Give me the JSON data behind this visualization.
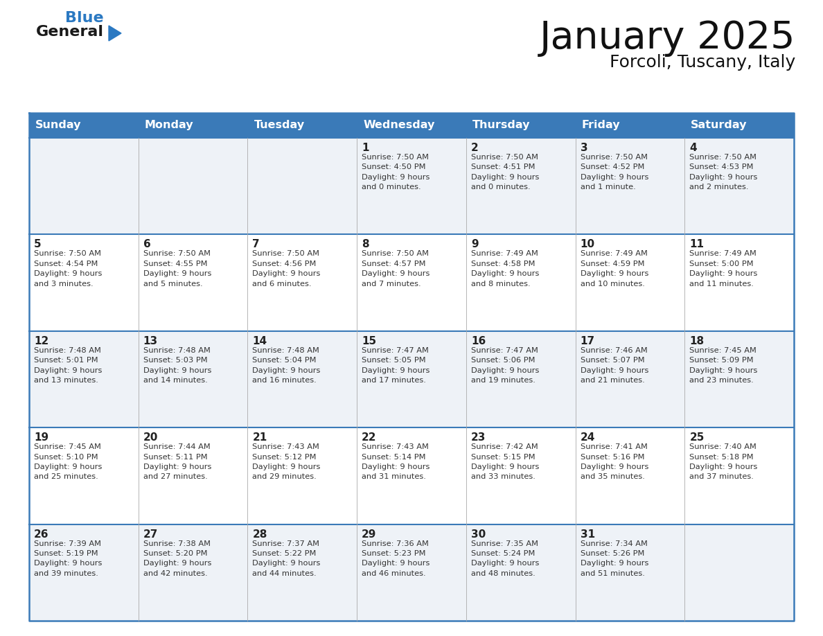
{
  "title": "January 2025",
  "subtitle": "Forcoli, Tuscany, Italy",
  "days_of_week": [
    "Sunday",
    "Monday",
    "Tuesday",
    "Wednesday",
    "Thursday",
    "Friday",
    "Saturday"
  ],
  "header_bg": "#3a7ab8",
  "header_text": "#ffffff",
  "row_bg_light": "#eef2f7",
  "row_bg_white": "#ffffff",
  "border_color": "#3a7ab8",
  "cell_border_color": "#3a7ab8",
  "text_color": "#333333",
  "day_num_color": "#222222",
  "logo_general_color": "#1a1a1a",
  "logo_blue_color": "#2b79c2",
  "logo_triangle_color": "#2b79c2",
  "calendar": [
    [
      {
        "day": "",
        "sunrise": "",
        "sunset": "",
        "daylight": ""
      },
      {
        "day": "",
        "sunrise": "",
        "sunset": "",
        "daylight": ""
      },
      {
        "day": "",
        "sunrise": "",
        "sunset": "",
        "daylight": ""
      },
      {
        "day": "1",
        "sunrise": "7:50 AM",
        "sunset": "4:50 PM",
        "daylight": "9 hours\nand 0 minutes."
      },
      {
        "day": "2",
        "sunrise": "7:50 AM",
        "sunset": "4:51 PM",
        "daylight": "9 hours\nand 0 minutes."
      },
      {
        "day": "3",
        "sunrise": "7:50 AM",
        "sunset": "4:52 PM",
        "daylight": "9 hours\nand 1 minute."
      },
      {
        "day": "4",
        "sunrise": "7:50 AM",
        "sunset": "4:53 PM",
        "daylight": "9 hours\nand 2 minutes."
      }
    ],
    [
      {
        "day": "5",
        "sunrise": "7:50 AM",
        "sunset": "4:54 PM",
        "daylight": "9 hours\nand 3 minutes."
      },
      {
        "day": "6",
        "sunrise": "7:50 AM",
        "sunset": "4:55 PM",
        "daylight": "9 hours\nand 5 minutes."
      },
      {
        "day": "7",
        "sunrise": "7:50 AM",
        "sunset": "4:56 PM",
        "daylight": "9 hours\nand 6 minutes."
      },
      {
        "day": "8",
        "sunrise": "7:50 AM",
        "sunset": "4:57 PM",
        "daylight": "9 hours\nand 7 minutes."
      },
      {
        "day": "9",
        "sunrise": "7:49 AM",
        "sunset": "4:58 PM",
        "daylight": "9 hours\nand 8 minutes."
      },
      {
        "day": "10",
        "sunrise": "7:49 AM",
        "sunset": "4:59 PM",
        "daylight": "9 hours\nand 10 minutes."
      },
      {
        "day": "11",
        "sunrise": "7:49 AM",
        "sunset": "5:00 PM",
        "daylight": "9 hours\nand 11 minutes."
      }
    ],
    [
      {
        "day": "12",
        "sunrise": "7:48 AM",
        "sunset": "5:01 PM",
        "daylight": "9 hours\nand 13 minutes."
      },
      {
        "day": "13",
        "sunrise": "7:48 AM",
        "sunset": "5:03 PM",
        "daylight": "9 hours\nand 14 minutes."
      },
      {
        "day": "14",
        "sunrise": "7:48 AM",
        "sunset": "5:04 PM",
        "daylight": "9 hours\nand 16 minutes."
      },
      {
        "day": "15",
        "sunrise": "7:47 AM",
        "sunset": "5:05 PM",
        "daylight": "9 hours\nand 17 minutes."
      },
      {
        "day": "16",
        "sunrise": "7:47 AM",
        "sunset": "5:06 PM",
        "daylight": "9 hours\nand 19 minutes."
      },
      {
        "day": "17",
        "sunrise": "7:46 AM",
        "sunset": "5:07 PM",
        "daylight": "9 hours\nand 21 minutes."
      },
      {
        "day": "18",
        "sunrise": "7:45 AM",
        "sunset": "5:09 PM",
        "daylight": "9 hours\nand 23 minutes."
      }
    ],
    [
      {
        "day": "19",
        "sunrise": "7:45 AM",
        "sunset": "5:10 PM",
        "daylight": "9 hours\nand 25 minutes."
      },
      {
        "day": "20",
        "sunrise": "7:44 AM",
        "sunset": "5:11 PM",
        "daylight": "9 hours\nand 27 minutes."
      },
      {
        "day": "21",
        "sunrise": "7:43 AM",
        "sunset": "5:12 PM",
        "daylight": "9 hours\nand 29 minutes."
      },
      {
        "day": "22",
        "sunrise": "7:43 AM",
        "sunset": "5:14 PM",
        "daylight": "9 hours\nand 31 minutes."
      },
      {
        "day": "23",
        "sunrise": "7:42 AM",
        "sunset": "5:15 PM",
        "daylight": "9 hours\nand 33 minutes."
      },
      {
        "day": "24",
        "sunrise": "7:41 AM",
        "sunset": "5:16 PM",
        "daylight": "9 hours\nand 35 minutes."
      },
      {
        "day": "25",
        "sunrise": "7:40 AM",
        "sunset": "5:18 PM",
        "daylight": "9 hours\nand 37 minutes."
      }
    ],
    [
      {
        "day": "26",
        "sunrise": "7:39 AM",
        "sunset": "5:19 PM",
        "daylight": "9 hours\nand 39 minutes."
      },
      {
        "day": "27",
        "sunrise": "7:38 AM",
        "sunset": "5:20 PM",
        "daylight": "9 hours\nand 42 minutes."
      },
      {
        "day": "28",
        "sunrise": "7:37 AM",
        "sunset": "5:22 PM",
        "daylight": "9 hours\nand 44 minutes."
      },
      {
        "day": "29",
        "sunrise": "7:36 AM",
        "sunset": "5:23 PM",
        "daylight": "9 hours\nand 46 minutes."
      },
      {
        "day": "30",
        "sunrise": "7:35 AM",
        "sunset": "5:24 PM",
        "daylight": "9 hours\nand 48 minutes."
      },
      {
        "day": "31",
        "sunrise": "7:34 AM",
        "sunset": "5:26 PM",
        "daylight": "9 hours\nand 51 minutes."
      },
      {
        "day": "",
        "sunrise": "",
        "sunset": "",
        "daylight": ""
      }
    ]
  ]
}
